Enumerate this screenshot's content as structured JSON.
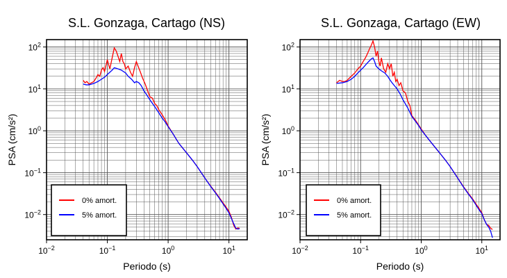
{
  "chart_data": [
    {
      "type": "line",
      "title": "S.L. Gonzaga, Cartago (NS)",
      "xlabel": "Periodo (s)",
      "ylabel": "PSA (cm/s²)",
      "xscale": "log",
      "yscale": "log",
      "xlim": [
        0.01,
        20
      ],
      "ylim": [
        0.0025,
        150
      ],
      "grid": true,
      "legend_position": "bottom-left",
      "xticks": [
        {
          "base": "10",
          "exp": "−2",
          "value": 0.01
        },
        {
          "base": "10",
          "exp": "−1",
          "value": 0.1
        },
        {
          "base": "10",
          "exp": "0",
          "value": 1
        },
        {
          "base": "10",
          "exp": "1",
          "value": 10
        }
      ],
      "yticks": [
        {
          "base": "10",
          "exp": "−2",
          "value": 0.01
        },
        {
          "base": "10",
          "exp": "−1",
          "value": 0.1
        },
        {
          "base": "10",
          "exp": "0",
          "value": 1
        },
        {
          "base": "10",
          "exp": "1",
          "value": 10
        },
        {
          "base": "10",
          "exp": "2",
          "value": 100
        }
      ],
      "series": [
        {
          "name": "0% amort.",
          "color": "#ff0000",
          "points": [
            [
              0.04,
              16
            ],
            [
              0.043,
              14
            ],
            [
              0.046,
              15
            ],
            [
              0.05,
              13
            ],
            [
              0.055,
              14
            ],
            [
              0.06,
              15
            ],
            [
              0.065,
              18
            ],
            [
              0.07,
              22
            ],
            [
              0.075,
              20
            ],
            [
              0.08,
              28
            ],
            [
              0.085,
              32
            ],
            [
              0.09,
              26
            ],
            [
              0.1,
              50
            ],
            [
              0.105,
              38
            ],
            [
              0.11,
              30
            ],
            [
              0.12,
              55
            ],
            [
              0.13,
              95
            ],
            [
              0.14,
              80
            ],
            [
              0.15,
              60
            ],
            [
              0.16,
              45
            ],
            [
              0.17,
              70
            ],
            [
              0.18,
              45
            ],
            [
              0.19,
              40
            ],
            [
              0.2,
              30
            ],
            [
              0.22,
              35
            ],
            [
              0.24,
              25
            ],
            [
              0.26,
              20
            ],
            [
              0.28,
              32
            ],
            [
              0.3,
              45
            ],
            [
              0.32,
              35
            ],
            [
              0.35,
              25
            ],
            [
              0.38,
              18
            ],
            [
              0.42,
              13
            ],
            [
              0.46,
              9
            ],
            [
              0.5,
              6.5
            ],
            [
              0.55,
              6
            ],
            [
              0.6,
              4.5
            ],
            [
              0.65,
              4
            ],
            [
              0.7,
              3.2
            ],
            [
              0.8,
              2.4
            ],
            [
              0.9,
              1.8
            ],
            [
              1.0,
              1.3
            ],
            [
              1.2,
              0.85
            ],
            [
              1.5,
              0.5
            ],
            [
              2,
              0.3
            ],
            [
              2.5,
              0.2
            ],
            [
              3,
              0.14
            ],
            [
              4,
              0.075
            ],
            [
              5,
              0.048
            ],
            [
              6,
              0.034
            ],
            [
              7,
              0.025
            ],
            [
              8,
              0.019
            ],
            [
              9,
              0.015
            ],
            [
              10,
              0.012
            ],
            [
              11,
              0.0085
            ],
            [
              12,
              0.0055
            ],
            [
              13,
              0.0045
            ],
            [
              14,
              0.0048
            ],
            [
              15,
              0.0047
            ]
          ]
        },
        {
          "name": "5% amort.",
          "color": "#0000ff",
          "points": [
            [
              0.04,
              13
            ],
            [
              0.045,
              12.5
            ],
            [
              0.05,
              12.5
            ],
            [
              0.055,
              13
            ],
            [
              0.06,
              13.5
            ],
            [
              0.07,
              15
            ],
            [
              0.08,
              17
            ],
            [
              0.09,
              19
            ],
            [
              0.1,
              22
            ],
            [
              0.11,
              25
            ],
            [
              0.12,
              28
            ],
            [
              0.13,
              32
            ],
            [
              0.14,
              31
            ],
            [
              0.15,
              30
            ],
            [
              0.17,
              28
            ],
            [
              0.2,
              24
            ],
            [
              0.22,
              20
            ],
            [
              0.25,
              17
            ],
            [
              0.28,
              14
            ],
            [
              0.3,
              15
            ],
            [
              0.33,
              14
            ],
            [
              0.36,
              12
            ],
            [
              0.4,
              9
            ],
            [
              0.45,
              7
            ],
            [
              0.5,
              5.5
            ],
            [
              0.6,
              3.8
            ],
            [
              0.7,
              2.7
            ],
            [
              0.8,
              2.0
            ],
            [
              0.9,
              1.6
            ],
            [
              1.0,
              1.25
            ],
            [
              1.2,
              0.85
            ],
            [
              1.5,
              0.5
            ],
            [
              2,
              0.3
            ],
            [
              2.5,
              0.2
            ],
            [
              3,
              0.14
            ],
            [
              4,
              0.075
            ],
            [
              5,
              0.047
            ],
            [
              6,
              0.033
            ],
            [
              7,
              0.024
            ],
            [
              8,
              0.018
            ],
            [
              9,
              0.014
            ],
            [
              10,
              0.011
            ],
            [
              11,
              0.008
            ],
            [
              12,
              0.006
            ],
            [
              13,
              0.0047
            ],
            [
              14,
              0.0045
            ],
            [
              15,
              0.0046
            ]
          ]
        }
      ]
    },
    {
      "type": "line",
      "title": "S.L. Gonzaga, Cartago (EW)",
      "xlabel": "Periodo (s)",
      "ylabel": "PSA (cm/s²)",
      "xscale": "log",
      "yscale": "log",
      "xlim": [
        0.01,
        20
      ],
      "ylim": [
        0.0025,
        150
      ],
      "grid": true,
      "legend_position": "bottom-left",
      "xticks": [
        {
          "base": "10",
          "exp": "−2",
          "value": 0.01
        },
        {
          "base": "10",
          "exp": "−1",
          "value": 0.1
        },
        {
          "base": "10",
          "exp": "0",
          "value": 1
        },
        {
          "base": "10",
          "exp": "1",
          "value": 10
        }
      ],
      "yticks": [
        {
          "base": "10",
          "exp": "−2",
          "value": 0.01
        },
        {
          "base": "10",
          "exp": "−1",
          "value": 0.1
        },
        {
          "base": "10",
          "exp": "0",
          "value": 1
        },
        {
          "base": "10",
          "exp": "1",
          "value": 10
        },
        {
          "base": "10",
          "exp": "2",
          "value": 100
        }
      ],
      "series": [
        {
          "name": "0% amort.",
          "color": "#ff0000",
          "points": [
            [
              0.04,
              14
            ],
            [
              0.045,
              16
            ],
            [
              0.05,
              15
            ],
            [
              0.055,
              15
            ],
            [
              0.06,
              16
            ],
            [
              0.065,
              18
            ],
            [
              0.07,
              20
            ],
            [
              0.08,
              24
            ],
            [
              0.09,
              30
            ],
            [
              0.1,
              35
            ],
            [
              0.11,
              45
            ],
            [
              0.12,
              55
            ],
            [
              0.13,
              70
            ],
            [
              0.14,
              90
            ],
            [
              0.15,
              110
            ],
            [
              0.16,
              140
            ],
            [
              0.17,
              100
            ],
            [
              0.18,
              60
            ],
            [
              0.19,
              80
            ],
            [
              0.2,
              45
            ],
            [
              0.21,
              35
            ],
            [
              0.22,
              55
            ],
            [
              0.24,
              30
            ],
            [
              0.26,
              25
            ],
            [
              0.28,
              40
            ],
            [
              0.3,
              30
            ],
            [
              0.32,
              40
            ],
            [
              0.34,
              20
            ],
            [
              0.36,
              25
            ],
            [
              0.38,
              15
            ],
            [
              0.4,
              17
            ],
            [
              0.43,
              12
            ],
            [
              0.46,
              14
            ],
            [
              0.5,
              9
            ],
            [
              0.55,
              8
            ],
            [
              0.6,
              5
            ],
            [
              0.65,
              4
            ],
            [
              0.7,
              2.3
            ],
            [
              0.8,
              1.8
            ],
            [
              0.9,
              1.4
            ],
            [
              1.0,
              1.1
            ],
            [
              1.2,
              0.75
            ],
            [
              1.5,
              0.5
            ],
            [
              2,
              0.3
            ],
            [
              2.5,
              0.2
            ],
            [
              3,
              0.14
            ],
            [
              4,
              0.075
            ],
            [
              5,
              0.046
            ],
            [
              6,
              0.032
            ],
            [
              7,
              0.024
            ],
            [
              8,
              0.018
            ],
            [
              9,
              0.014
            ],
            [
              10,
              0.011
            ],
            [
              11,
              0.0075
            ],
            [
              12,
              0.0058
            ],
            [
              13,
              0.0055
            ],
            [
              14,
              0.0047
            ],
            [
              15,
              0.0044
            ]
          ]
        },
        {
          "name": "5% amort.",
          "color": "#0000ff",
          "points": [
            [
              0.04,
              13.5
            ],
            [
              0.05,
              14
            ],
            [
              0.06,
              15
            ],
            [
              0.07,
              17
            ],
            [
              0.08,
              20
            ],
            [
              0.09,
              24
            ],
            [
              0.1,
              28
            ],
            [
              0.11,
              32
            ],
            [
              0.12,
              37
            ],
            [
              0.13,
              42
            ],
            [
              0.14,
              47
            ],
            [
              0.15,
              52
            ],
            [
              0.16,
              55
            ],
            [
              0.17,
              45
            ],
            [
              0.18,
              35
            ],
            [
              0.2,
              30
            ],
            [
              0.22,
              27
            ],
            [
              0.25,
              24
            ],
            [
              0.28,
              20
            ],
            [
              0.3,
              17
            ],
            [
              0.33,
              14
            ],
            [
              0.36,
              12
            ],
            [
              0.4,
              10
            ],
            [
              0.45,
              7.5
            ],
            [
              0.5,
              5.5
            ],
            [
              0.6,
              3.5
            ],
            [
              0.7,
              2.2
            ],
            [
              0.8,
              1.7
            ],
            [
              0.9,
              1.35
            ],
            [
              1.0,
              1.05
            ],
            [
              1.2,
              0.75
            ],
            [
              1.5,
              0.5
            ],
            [
              2,
              0.3
            ],
            [
              2.5,
              0.2
            ],
            [
              3,
              0.14
            ],
            [
              4,
              0.074
            ],
            [
              5,
              0.045
            ],
            [
              6,
              0.031
            ],
            [
              7,
              0.023
            ],
            [
              8,
              0.017
            ],
            [
              9,
              0.013
            ],
            [
              10,
              0.0105
            ],
            [
              11,
              0.0075
            ],
            [
              12,
              0.0058
            ],
            [
              13,
              0.005
            ],
            [
              14,
              0.004
            ],
            [
              15,
              0.0028
            ]
          ]
        }
      ]
    }
  ]
}
